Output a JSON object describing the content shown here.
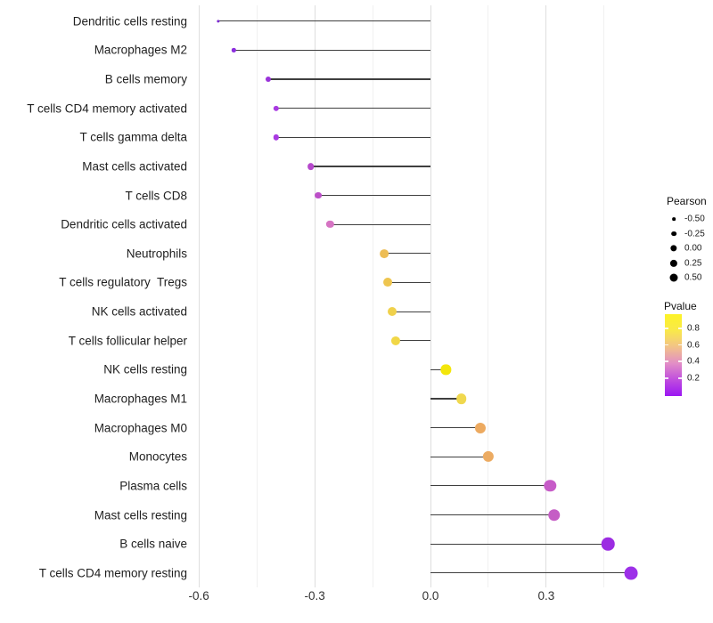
{
  "chart_data": {
    "type": "lollipop",
    "title": "",
    "xlabel": "",
    "ylabel": "",
    "grid": "major and minor vertical gridlines, no axis lines, white background",
    "xlim": [
      -0.62,
      0.55
    ],
    "x_major_ticks": [
      -0.6,
      -0.3,
      0.0,
      0.3
    ],
    "x_tick_labels": [
      "-0.6",
      "-0.3",
      "0.0",
      "0.3"
    ],
    "x_minor_ticks": [
      -0.45,
      -0.15,
      0.15,
      0.45
    ],
    "baseline_x": 0.0,
    "rows": [
      {
        "label": "Dendritic cells resting",
        "pearson": -0.55,
        "pvalue": 0.04,
        "color": "#7b2bd1"
      },
      {
        "label": "Macrophages M2",
        "pearson": -0.51,
        "pvalue": 0.07,
        "color": "#8c2ede"
      },
      {
        "label": "B cells memory",
        "pearson": -0.42,
        "pvalue": 0.11,
        "color": "#9a33da"
      },
      {
        "label": "T cells CD4 memory activated",
        "pearson": -0.4,
        "pvalue": 0.14,
        "color": "#a93ae2"
      },
      {
        "label": "T cells gamma delta",
        "pearson": -0.4,
        "pvalue": 0.14,
        "color": "#a93ae2"
      },
      {
        "label": "Mast cells activated",
        "pearson": -0.31,
        "pvalue": 0.22,
        "color": "#b648cc"
      },
      {
        "label": "T cells CD8",
        "pearson": -0.29,
        "pvalue": 0.25,
        "color": "#bc4fc8"
      },
      {
        "label": "Dendritic cells activated",
        "pearson": -0.26,
        "pvalue": 0.36,
        "color": "#d674c3"
      },
      {
        "label": "Neutrophils",
        "pearson": -0.12,
        "pvalue": 0.62,
        "color": "#edbd55"
      },
      {
        "label": "T cells regulatory  Tregs",
        "pearson": -0.11,
        "pvalue": 0.65,
        "color": "#eec54f"
      },
      {
        "label": "NK cells activated",
        "pearson": -0.1,
        "pvalue": 0.7,
        "color": "#f0d14b"
      },
      {
        "label": "T cells follicular helper",
        "pearson": -0.09,
        "pvalue": 0.72,
        "color": "#f1d747"
      },
      {
        "label": "NK cells resting",
        "pearson": 0.04,
        "pvalue": 0.88,
        "color": "#f3e60b"
      },
      {
        "label": "Macrophages M1",
        "pearson": 0.08,
        "pvalue": 0.73,
        "color": "#f0d84e"
      },
      {
        "label": "Macrophages M0",
        "pearson": 0.13,
        "pvalue": 0.55,
        "color": "#edaa60"
      },
      {
        "label": "Monocytes",
        "pearson": 0.15,
        "pvalue": 0.55,
        "color": "#ecab62"
      },
      {
        "label": "Plasma cells",
        "pearson": 0.31,
        "pvalue": 0.3,
        "color": "#c75cc8"
      },
      {
        "label": "Mast cells resting",
        "pearson": 0.32,
        "pvalue": 0.29,
        "color": "#c55dc5"
      },
      {
        "label": "B cells naive",
        "pearson": 0.46,
        "pvalue": 0.06,
        "color": "#9c2ce2"
      },
      {
        "label": "T cells CD4 memory resting",
        "pearson": 0.52,
        "pvalue": 0.05,
        "color": "#9d30e8"
      }
    ]
  },
  "legend": {
    "pearson": {
      "title": "Pearson",
      "entries": [
        {
          "label": "-0.50",
          "value": -0.5
        },
        {
          "label": "-0.25",
          "value": -0.25
        },
        {
          "label": "0.00",
          "value": 0.0
        },
        {
          "label": "0.25",
          "value": 0.25
        },
        {
          "label": "0.50",
          "value": 0.5
        }
      ],
      "dot_color": "#000000"
    },
    "pvalue": {
      "title": "Pvalue",
      "tick_labels": [
        "0.8",
        "0.6",
        "0.4",
        "0.2"
      ],
      "gradient_top_to_bottom": [
        "#fdf327",
        "#f9e94a",
        "#f2c289",
        "#e28ec6",
        "#c04ede",
        "#9b16f2"
      ]
    }
  },
  "colors": {
    "background": "#ffffff",
    "stem": "#3f3f3f",
    "grid_major": "#dedede",
    "grid_minor": "#f0f0f0",
    "axis_text": "#333333",
    "label_text": "#1f1f1f"
  }
}
